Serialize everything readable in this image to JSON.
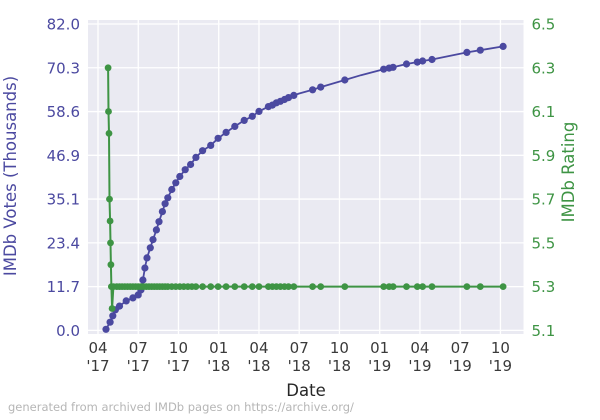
{
  "chart_data": {
    "type": "line",
    "title": "",
    "xlabel": "Date",
    "ylabel_left": "IMDb Votes (Thousands)",
    "ylabel_right": "IMDb Rating",
    "caption": "generated from archived IMDb pages on https://archive.org/",
    "plot_bg": "#eaeaf2",
    "grid": true,
    "grid_color": "#ffffff",
    "x_axis": {
      "unit": "months since Apr 2017",
      "range": [
        -0.75,
        31.7
      ],
      "tick_positions": [
        0,
        3,
        6,
        9,
        12,
        15,
        18,
        21,
        24,
        27,
        30
      ],
      "tick_labels": [
        [
          "04",
          "'17"
        ],
        [
          "07",
          "'17"
        ],
        [
          "10",
          "'17"
        ],
        [
          "01",
          "'18"
        ],
        [
          "04",
          "'18"
        ],
        [
          "07",
          "'18"
        ],
        [
          "10",
          "'18"
        ],
        [
          "01",
          "'19"
        ],
        [
          "04",
          "'19"
        ],
        [
          "07",
          "'19"
        ],
        [
          "10",
          "'19"
        ]
      ],
      "tick_color": "#3a3a3a"
    },
    "y_left": {
      "range": [
        0.0,
        82.0
      ],
      "ticks": [
        "0.0",
        "11.7",
        "23.4",
        "35.1",
        "46.9",
        "58.6",
        "70.3",
        "82.0"
      ],
      "color": "#4b49a0"
    },
    "y_right": {
      "range": [
        5.1,
        6.5
      ],
      "ticks": [
        "5.1",
        "5.3",
        "5.5",
        "5.7",
        "5.9",
        "6.1",
        "6.3",
        "6.5"
      ],
      "color": "#3e9444"
    },
    "series": [
      {
        "name": "IMDb Votes (Thousands)",
        "slug": "votes",
        "axis": "left",
        "color": "#4b49a0",
        "line_width": 1.8,
        "marker_radius": 3.6,
        "points": [
          [
            0.6,
            0.3,
            1
          ],
          [
            0.9,
            2.2,
            1
          ],
          [
            1.1,
            3.9,
            1
          ],
          [
            1.3,
            5.5,
            1
          ],
          [
            1.6,
            6.5,
            1
          ],
          [
            2.1,
            7.9,
            1
          ],
          [
            2.6,
            8.7,
            1
          ],
          [
            3.0,
            9.5,
            1
          ],
          [
            3.2,
            10.8,
            1
          ],
          [
            3.35,
            13.5,
            1
          ],
          [
            3.5,
            16.7,
            1
          ],
          [
            3.65,
            19.4,
            1
          ],
          [
            3.9,
            22.1,
            1
          ],
          [
            4.1,
            24.3,
            1
          ],
          [
            4.35,
            26.9,
            1
          ],
          [
            4.55,
            29.1,
            1
          ],
          [
            4.8,
            31.8,
            1
          ],
          [
            5.0,
            33.9,
            1
          ],
          [
            5.2,
            35.5,
            1
          ],
          [
            5.5,
            37.7,
            1
          ],
          [
            5.8,
            39.5,
            1
          ],
          [
            6.1,
            41.2,
            1
          ],
          [
            6.5,
            43.0,
            1
          ],
          [
            6.9,
            44.4,
            1
          ],
          [
            7.3,
            46.3,
            1
          ],
          [
            7.8,
            48.1,
            1
          ],
          [
            8.4,
            49.5,
            1
          ],
          [
            8.95,
            51.4,
            1
          ],
          [
            9.55,
            53.0,
            1
          ],
          [
            10.2,
            54.6,
            1
          ],
          [
            10.9,
            56.2,
            1
          ],
          [
            11.5,
            57.3,
            1
          ],
          [
            12.0,
            58.6,
            1
          ],
          [
            12.7,
            59.9,
            1
          ],
          [
            13.0,
            60.3,
            1
          ],
          [
            13.3,
            60.9,
            1
          ],
          [
            13.6,
            61.3,
            1
          ],
          [
            13.9,
            61.8,
            1
          ],
          [
            14.2,
            62.3,
            1
          ],
          [
            14.6,
            62.9,
            1
          ],
          [
            15.0,
            63.4,
            0
          ],
          [
            16.0,
            64.4,
            1
          ],
          [
            16.6,
            65.1,
            1
          ],
          [
            18.4,
            67.0,
            1
          ],
          [
            19.6,
            68.3,
            0
          ],
          [
            21.3,
            69.9,
            1
          ],
          [
            21.7,
            70.2,
            1
          ],
          [
            22.0,
            70.4,
            1
          ],
          [
            23.0,
            71.3,
            1
          ],
          [
            23.8,
            71.8,
            1
          ],
          [
            24.2,
            72.1,
            1
          ],
          [
            24.9,
            72.5,
            1
          ],
          [
            27.5,
            74.4,
            1
          ],
          [
            28.5,
            75.0,
            1
          ],
          [
            30.2,
            76.0,
            1
          ]
        ]
      },
      {
        "name": "IMDb Rating",
        "slug": "rating",
        "axis": "right",
        "color": "#3e9444",
        "line_width": 2,
        "marker_radius": 3.4,
        "points": [
          [
            0.75,
            6.3,
            1
          ],
          [
            0.78,
            6.1,
            1
          ],
          [
            0.82,
            6.0,
            1
          ],
          [
            0.86,
            5.7,
            1
          ],
          [
            0.9,
            5.6,
            1
          ],
          [
            0.93,
            5.5,
            1
          ],
          [
            0.96,
            5.4,
            1
          ],
          [
            1.0,
            5.3,
            1
          ],
          [
            1.05,
            5.2,
            1
          ],
          [
            1.15,
            5.3,
            1
          ],
          [
            1.4,
            5.3,
            1
          ],
          [
            1.6,
            5.3,
            1
          ],
          [
            1.8,
            5.3,
            1
          ],
          [
            2.0,
            5.3,
            1
          ],
          [
            2.2,
            5.3,
            1
          ],
          [
            2.4,
            5.3,
            1
          ],
          [
            2.6,
            5.3,
            1
          ],
          [
            2.8,
            5.3,
            1
          ],
          [
            3.0,
            5.3,
            1
          ],
          [
            3.2,
            5.3,
            1
          ],
          [
            3.4,
            5.3,
            1
          ],
          [
            3.6,
            5.3,
            1
          ],
          [
            3.8,
            5.3,
            1
          ],
          [
            4.0,
            5.3,
            1
          ],
          [
            4.2,
            5.3,
            1
          ],
          [
            4.4,
            5.3,
            1
          ],
          [
            4.6,
            5.3,
            1
          ],
          [
            4.8,
            5.3,
            1
          ],
          [
            5.0,
            5.3,
            1
          ],
          [
            5.2,
            5.3,
            1
          ],
          [
            5.5,
            5.3,
            1
          ],
          [
            5.8,
            5.3,
            1
          ],
          [
            6.1,
            5.3,
            1
          ],
          [
            6.4,
            5.3,
            1
          ],
          [
            6.7,
            5.3,
            1
          ],
          [
            7.0,
            5.3,
            1
          ],
          [
            7.3,
            5.3,
            1
          ],
          [
            7.8,
            5.3,
            1
          ],
          [
            8.4,
            5.3,
            1
          ],
          [
            8.95,
            5.3,
            1
          ],
          [
            9.55,
            5.3,
            1
          ],
          [
            10.2,
            5.3,
            1
          ],
          [
            10.9,
            5.3,
            1
          ],
          [
            11.5,
            5.3,
            1
          ],
          [
            12.0,
            5.3,
            1
          ],
          [
            12.7,
            5.3,
            1
          ],
          [
            13.0,
            5.3,
            1
          ],
          [
            13.3,
            5.3,
            1
          ],
          [
            13.6,
            5.3,
            1
          ],
          [
            13.9,
            5.3,
            1
          ],
          [
            14.2,
            5.3,
            1
          ],
          [
            14.6,
            5.3,
            1
          ],
          [
            16.0,
            5.3,
            1
          ],
          [
            16.6,
            5.3,
            1
          ],
          [
            18.4,
            5.3,
            1
          ],
          [
            21.3,
            5.3,
            1
          ],
          [
            21.7,
            5.3,
            1
          ],
          [
            22.0,
            5.3,
            1
          ],
          [
            23.0,
            5.3,
            1
          ],
          [
            23.8,
            5.3,
            1
          ],
          [
            24.2,
            5.3,
            1
          ],
          [
            24.9,
            5.3,
            1
          ],
          [
            27.5,
            5.3,
            1
          ],
          [
            28.5,
            5.3,
            1
          ],
          [
            30.2,
            5.3,
            1
          ]
        ]
      }
    ]
  }
}
